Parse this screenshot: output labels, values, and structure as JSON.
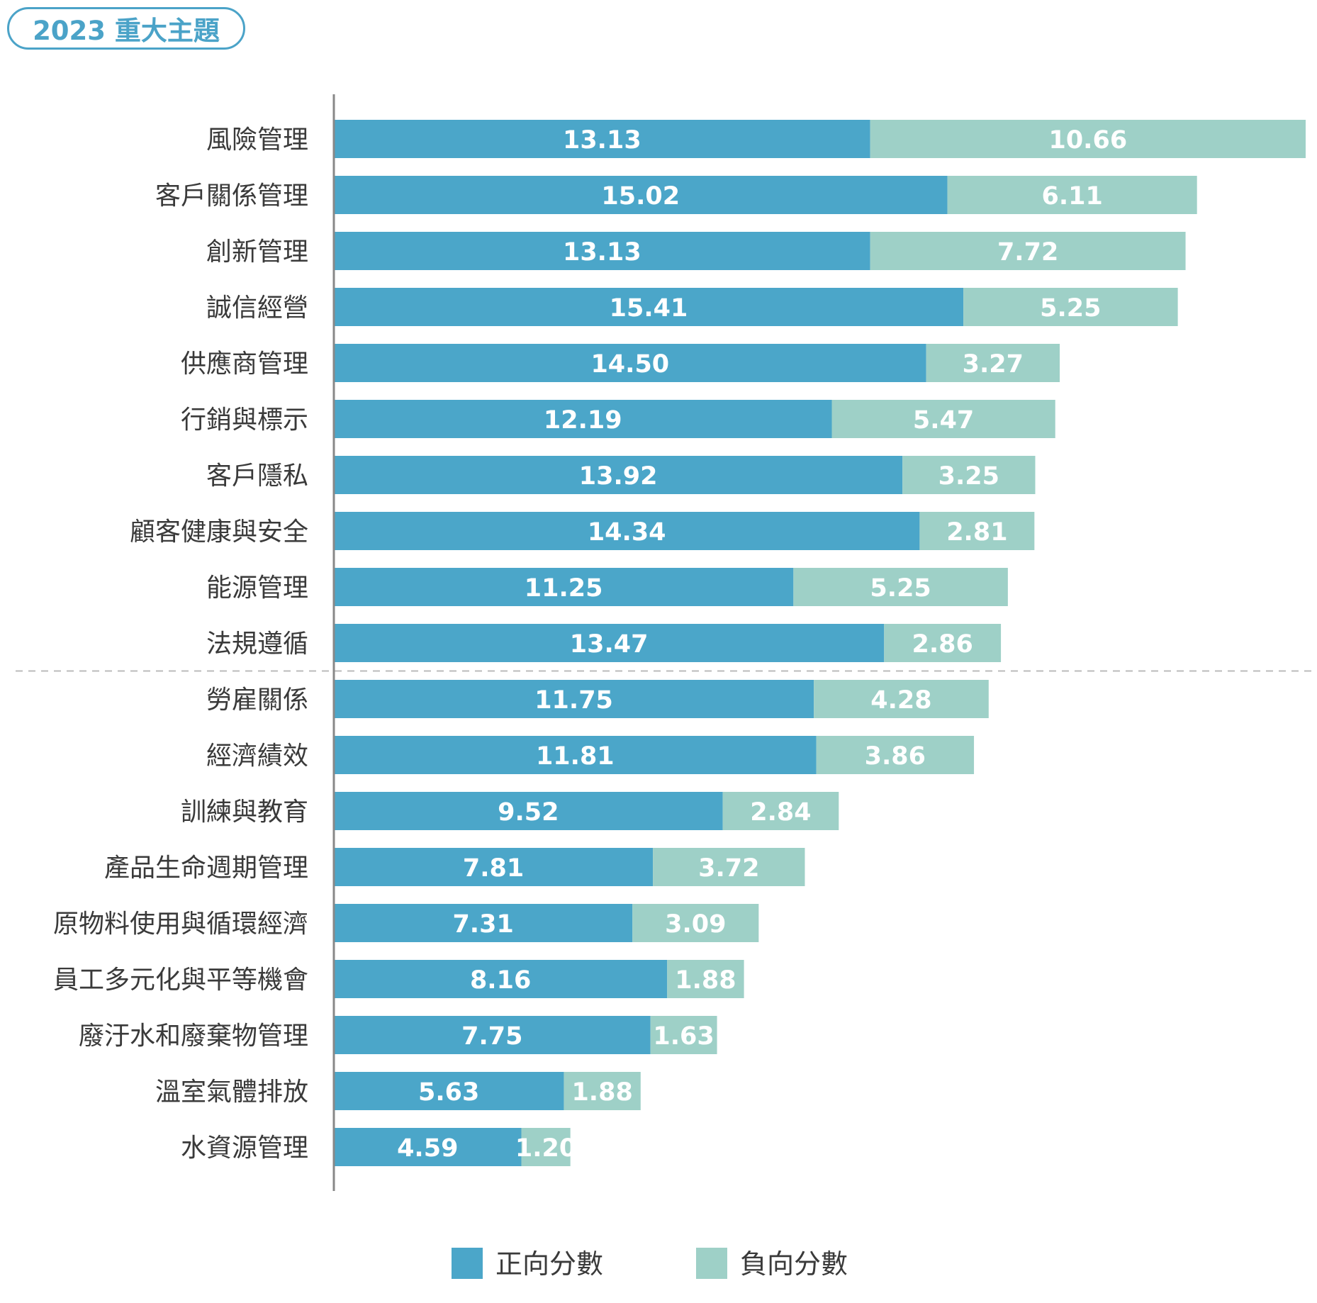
{
  "header": {
    "title": "2023 重大主題"
  },
  "colors": {
    "positive": "#4BA6C9",
    "negative": "#9ED0C7",
    "axis": "#888888",
    "divider": "#bbbbbb",
    "pill": "#4BA3C8"
  },
  "chart_data": {
    "type": "bar",
    "orientation": "horizontal",
    "stacked": true,
    "categories": [
      "風險管理",
      "客戶關係管理",
      "創新管理",
      "誠信經營",
      "供應商管理",
      "行銷與標示",
      "客戶隱私",
      "顧客健康與安全",
      "能源管理",
      "法規遵循",
      "勞雇關係",
      "經濟績效",
      "訓練與教育",
      "產品生命週期管理",
      "原物料使用與循環經濟",
      "員工多元化與平等機會",
      "廢汙水和廢棄物管理",
      "溫室氣體排放",
      "水資源管理"
    ],
    "series": [
      {
        "name": "正向分數",
        "values": [
          13.13,
          15.02,
          13.13,
          15.41,
          14.5,
          12.19,
          13.92,
          14.34,
          11.25,
          13.47,
          11.75,
          11.81,
          9.52,
          7.81,
          7.31,
          8.16,
          7.75,
          5.63,
          4.59
        ],
        "labels": [
          "13.13",
          "15.02",
          "13.13",
          "15.41",
          "14.50",
          "12.19",
          "13.92",
          "14.34",
          "11.25",
          "13.47",
          "11.75",
          "11.81",
          "9.52",
          "7.81",
          "7.31",
          "8.16",
          "7.75",
          "5.63",
          "4.59"
        ]
      },
      {
        "name": "負向分數",
        "values": [
          10.66,
          6.11,
          7.72,
          5.25,
          3.27,
          5.47,
          3.25,
          2.81,
          5.25,
          2.86,
          4.28,
          3.86,
          2.84,
          3.72,
          3.09,
          1.88,
          1.63,
          1.88,
          1.2
        ],
        "labels": [
          "10.66",
          "6.11",
          "7.72",
          "5.25",
          "3.27",
          "5.47",
          "3.25",
          "2.81",
          "5.25",
          "2.86",
          "4.28",
          "3.86",
          "2.84",
          "3.72",
          "3.09",
          "1.88",
          "1.63",
          "1.88",
          "1.20"
        ]
      }
    ],
    "xlim": [
      0,
      23.79
    ],
    "divider_after_index": 9,
    "legend_position": "bottom-center",
    "grid": false
  }
}
